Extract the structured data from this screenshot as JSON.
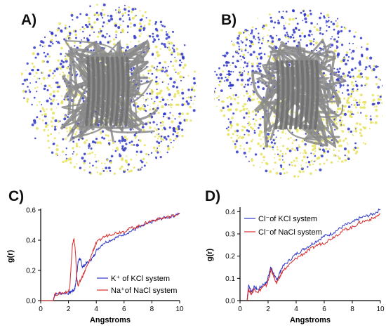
{
  "panels": {
    "a": "A)",
    "b": "B)",
    "c": "C)",
    "d": "D)"
  },
  "colors": {
    "potassium": "#2e36c8",
    "sodium": "#d72b2b",
    "chloride_yellow": "#e6e25a",
    "protein": "#8a8a8a"
  },
  "chart_data": [
    {
      "type": "line",
      "panel": "C)",
      "xlabel": "Angstroms",
      "ylabel": "g(r)",
      "xlim": [
        0,
        10
      ],
      "ylim": [
        0,
        0.6
      ],
      "xticks": [
        "0",
        "2",
        "4",
        "6",
        "8",
        "10"
      ],
      "yticks": [
        "0.0",
        "0.2",
        "0.4",
        "0.6"
      ],
      "legend": [
        "K⁺ of KCl system",
        "Na⁺of NaCl system"
      ],
      "legend_position": "bottom-right",
      "series": [
        {
          "name": "K⁺ of KCl system",
          "color": "#2e36c8",
          "x": [
            0.0,
            0.9,
            1.0,
            1.5,
            2.0,
            2.2,
            2.4,
            2.5,
            2.6,
            2.7,
            2.8,
            2.9,
            3.0,
            3.2,
            3.5,
            3.8,
            4.0,
            4.5,
            5.0,
            5.5,
            6.0,
            6.5,
            7.0,
            7.5,
            8.0,
            8.5,
            9.0,
            9.5,
            10.0
          ],
          "y": [
            0.0,
            0.0,
            0.04,
            0.05,
            0.05,
            0.06,
            0.07,
            0.1,
            0.18,
            0.26,
            0.28,
            0.26,
            0.22,
            0.24,
            0.26,
            0.29,
            0.33,
            0.38,
            0.4,
            0.42,
            0.44,
            0.46,
            0.48,
            0.5,
            0.52,
            0.54,
            0.55,
            0.56,
            0.58
          ]
        },
        {
          "name": "Na⁺of NaCl system",
          "color": "#d72b2b",
          "x": [
            0.0,
            0.9,
            1.0,
            1.5,
            2.0,
            2.1,
            2.2,
            2.3,
            2.4,
            2.5,
            2.6,
            2.7,
            2.8,
            3.0,
            3.2,
            3.5,
            3.8,
            4.0,
            4.5,
            5.0,
            5.5,
            6.0,
            6.5,
            7.0,
            7.5,
            8.0,
            8.5,
            9.0,
            9.5,
            10.0
          ],
          "y": [
            0.0,
            0.0,
            0.04,
            0.05,
            0.06,
            0.1,
            0.25,
            0.38,
            0.41,
            0.32,
            0.14,
            0.1,
            0.12,
            0.16,
            0.2,
            0.26,
            0.34,
            0.38,
            0.42,
            0.44,
            0.45,
            0.46,
            0.48,
            0.49,
            0.51,
            0.53,
            0.54,
            0.55,
            0.56,
            0.58
          ]
        }
      ]
    },
    {
      "type": "line",
      "panel": "D)",
      "xlabel": "Angstroms",
      "ylabel": "g(r)",
      "xlim": [
        0,
        10
      ],
      "ylim": [
        0,
        0.42
      ],
      "xticks": [
        "0",
        "2",
        "4",
        "6",
        "8",
        "10"
      ],
      "yticks": [
        "0.0",
        "0.1",
        "0.2",
        "0.3",
        "0.4"
      ],
      "legend": [
        "Cl⁻of KCl system",
        "Cl⁻of NaCl system"
      ],
      "legend_position": "top-left",
      "series": [
        {
          "name": "Cl⁻of KCl system",
          "color": "#2e36c8",
          "x": [
            0.5,
            0.6,
            0.8,
            1.0,
            1.3,
            1.6,
            1.9,
            2.1,
            2.2,
            2.4,
            2.6,
            2.8,
            3.0,
            3.5,
            4.0,
            4.5,
            5.0,
            5.5,
            6.0,
            6.5,
            7.0,
            7.5,
            8.0,
            8.5,
            9.0,
            9.5,
            10.0
          ],
          "y": [
            0.0,
            0.07,
            0.04,
            0.06,
            0.05,
            0.07,
            0.08,
            0.13,
            0.15,
            0.12,
            0.09,
            0.12,
            0.15,
            0.18,
            0.21,
            0.23,
            0.25,
            0.27,
            0.29,
            0.3,
            0.32,
            0.34,
            0.35,
            0.37,
            0.38,
            0.39,
            0.41
          ]
        },
        {
          "name": "Cl⁻of NaCl system",
          "color": "#d72b2b",
          "x": [
            0.5,
            0.6,
            0.8,
            1.0,
            1.3,
            1.6,
            1.9,
            2.1,
            2.2,
            2.4,
            2.6,
            2.8,
            3.0,
            3.5,
            4.0,
            4.5,
            5.0,
            5.5,
            6.0,
            6.5,
            7.0,
            7.5,
            8.0,
            8.5,
            9.0,
            9.5,
            10.0
          ],
          "y": [
            0.0,
            0.05,
            0.03,
            0.05,
            0.04,
            0.06,
            0.07,
            0.11,
            0.14,
            0.11,
            0.08,
            0.1,
            0.13,
            0.16,
            0.19,
            0.21,
            0.23,
            0.25,
            0.26,
            0.28,
            0.3,
            0.32,
            0.33,
            0.35,
            0.36,
            0.37,
            0.39
          ]
        }
      ]
    }
  ]
}
